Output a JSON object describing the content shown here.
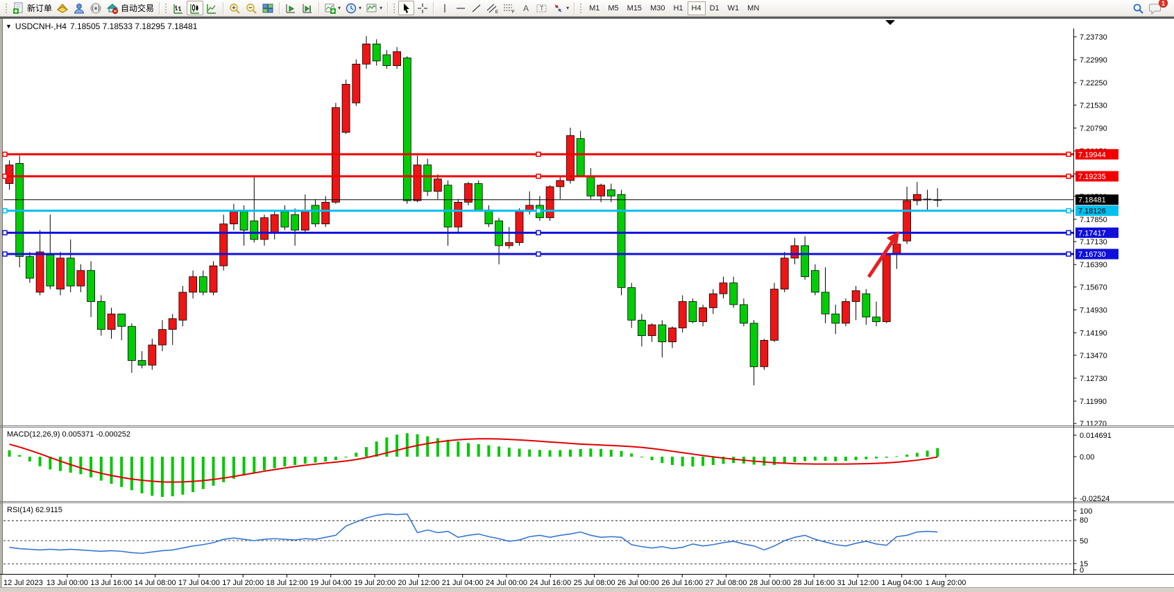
{
  "toolbar": {
    "new_order_label": "新订单",
    "auto_trading_label": "自动交易",
    "timeframes": [
      "M1",
      "M5",
      "M15",
      "M30",
      "H1",
      "H4",
      "D1",
      "W1",
      "MN"
    ],
    "active_timeframe": "H4",
    "notification_count": "1"
  },
  "chart": {
    "title_symbol": "USDCNH-,H4",
    "title_ohlc": "7.18505 7.18533 7.18295 7.18481",
    "collapse_arrow": "▼"
  },
  "chart_data": {
    "type": "candlestick",
    "symbol": "USDCNH-",
    "timeframe": "H4",
    "ohlc": {
      "open": "7.18505",
      "high": "7.18533",
      "low": "7.18295",
      "close": "7.18481"
    },
    "current_price": 7.18481,
    "price_ticks": [
      7.2373,
      7.2299,
      7.2225,
      7.2153,
      7.2079,
      7.2005,
      7.1931,
      7.1859,
      7.1785,
      7.1713,
      7.1639,
      7.1567,
      7.1493,
      7.1419,
      7.1347,
      7.1273,
      7.1199,
      7.1127
    ],
    "hlines": [
      {
        "price": 7.19944,
        "color": "red"
      },
      {
        "price": 7.19235,
        "color": "red"
      },
      {
        "price": 7.18126,
        "color": "cyan"
      },
      {
        "price": 7.17417,
        "color": "blue"
      },
      {
        "price": 7.1673,
        "color": "blue"
      }
    ],
    "candles": [
      [
        7.19,
        7.1975,
        7.188,
        7.196
      ],
      [
        7.1965,
        7.199,
        7.163,
        7.1665
      ],
      [
        7.1665,
        7.168,
        7.158,
        7.1595
      ],
      [
        7.155,
        7.175,
        7.154,
        7.168
      ],
      [
        7.167,
        7.18,
        7.156,
        7.157
      ],
      [
        7.156,
        7.168,
        7.154,
        7.166
      ],
      [
        7.166,
        7.172,
        7.155,
        7.157
      ],
      [
        7.157,
        7.164,
        7.155,
        7.162
      ],
      [
        7.162,
        7.165,
        7.147,
        7.152
      ],
      [
        7.152,
        7.154,
        7.141,
        7.143
      ],
      [
        7.143,
        7.15,
        7.14,
        7.148
      ],
      [
        7.148,
        7.148,
        7.1395,
        7.144
      ],
      [
        7.144,
        7.145,
        7.129,
        7.133
      ],
      [
        7.133,
        7.136,
        7.1305,
        7.1315
      ],
      [
        7.1315,
        7.14,
        7.13,
        7.138
      ],
      [
        7.138,
        7.146,
        7.136,
        7.143
      ],
      [
        7.143,
        7.148,
        7.138,
        7.1465
      ],
      [
        7.146,
        7.157,
        7.144,
        7.155
      ],
      [
        7.155,
        7.162,
        7.153,
        7.16
      ],
      [
        7.16,
        7.162,
        7.154,
        7.155
      ],
      [
        7.155,
        7.165,
        7.154,
        7.1635
      ],
      [
        7.1635,
        7.18,
        7.162,
        7.177
      ],
      [
        7.177,
        7.1835,
        7.175,
        7.181
      ],
      [
        7.181,
        7.183,
        7.17,
        7.175
      ],
      [
        7.178,
        7.1925,
        7.171,
        7.172
      ],
      [
        7.172,
        7.18,
        7.17,
        7.179
      ],
      [
        7.174,
        7.181,
        7.172,
        7.18
      ],
      [
        7.181,
        7.183,
        7.175,
        7.176
      ],
      [
        7.18,
        7.182,
        7.17,
        7.175
      ],
      [
        7.175,
        7.1865,
        7.174,
        7.181
      ],
      [
        7.183,
        7.185,
        7.176,
        7.177
      ],
      [
        7.177,
        7.186,
        7.176,
        7.184
      ],
      [
        7.184,
        7.216,
        7.1835,
        7.2145
      ],
      [
        7.2065,
        7.2235,
        7.206,
        7.222
      ],
      [
        7.216,
        7.23,
        7.215,
        7.2285
      ],
      [
        7.2285,
        7.2375,
        7.227,
        7.235
      ],
      [
        7.235,
        7.2365,
        7.228,
        7.2295
      ],
      [
        7.2315,
        7.233,
        7.227,
        7.228
      ],
      [
        7.228,
        7.234,
        7.227,
        7.2325
      ],
      [
        7.2305,
        7.231,
        7.1835,
        7.1845
      ],
      [
        7.1845,
        7.199,
        7.184,
        7.196
      ],
      [
        7.196,
        7.198,
        7.186,
        7.1875
      ],
      [
        7.1875,
        7.193,
        7.185,
        7.1915
      ],
      [
        7.1895,
        7.191,
        7.17,
        7.176
      ],
      [
        7.176,
        7.185,
        7.174,
        7.184
      ],
      [
        7.184,
        7.1905,
        7.183,
        7.19
      ],
      [
        7.19,
        7.191,
        7.181,
        7.1815
      ],
      [
        7.1815,
        7.183,
        7.176,
        7.177
      ],
      [
        7.178,
        7.179,
        7.164,
        7.17
      ],
      [
        7.17,
        7.176,
        7.169,
        7.171
      ],
      [
        7.171,
        7.182,
        7.17,
        7.181
      ],
      [
        7.181,
        7.1875,
        7.18,
        7.183
      ],
      [
        7.183,
        7.186,
        7.178,
        7.179
      ],
      [
        7.179,
        7.1895,
        7.178,
        7.189
      ],
      [
        7.189,
        7.1925,
        7.185,
        7.191
      ],
      [
        7.191,
        7.208,
        7.19,
        7.2055
      ],
      [
        7.2045,
        7.207,
        7.192,
        7.1925
      ],
      [
        7.1925,
        7.195,
        7.185,
        7.186
      ],
      [
        7.186,
        7.19,
        7.184,
        7.1895
      ],
      [
        7.188,
        7.19,
        7.184,
        7.186
      ],
      [
        7.1865,
        7.188,
        7.154,
        7.1565
      ],
      [
        7.1565,
        7.158,
        7.1435,
        7.146
      ],
      [
        7.146,
        7.148,
        7.1375,
        7.141
      ],
      [
        7.141,
        7.145,
        7.139,
        7.1445
      ],
      [
        7.1445,
        7.146,
        7.134,
        7.139
      ],
      [
        7.139,
        7.144,
        7.137,
        7.1435
      ],
      [
        7.1435,
        7.154,
        7.142,
        7.152
      ],
      [
        7.152,
        7.153,
        7.145,
        7.1455
      ],
      [
        7.1455,
        7.151,
        7.144,
        7.15
      ],
      [
        7.15,
        7.156,
        7.148,
        7.1545
      ],
      [
        7.1545,
        7.16,
        7.153,
        7.158
      ],
      [
        7.158,
        7.16,
        7.15,
        7.151
      ],
      [
        7.151,
        7.153,
        7.144,
        7.145
      ],
      [
        7.145,
        7.146,
        7.125,
        7.131
      ],
      [
        7.131,
        7.14,
        7.13,
        7.1395
      ],
      [
        7.1395,
        7.158,
        7.139,
        7.156
      ],
      [
        7.156,
        7.168,
        7.155,
        7.166
      ],
      [
        7.166,
        7.1725,
        7.164,
        7.17
      ],
      [
        7.17,
        7.173,
        7.159,
        7.16
      ],
      [
        7.162,
        7.164,
        7.154,
        7.155
      ],
      [
        7.155,
        7.163,
        7.145,
        7.148
      ],
      [
        7.148,
        7.151,
        7.1415,
        7.145
      ],
      [
        7.145,
        7.153,
        7.144,
        7.152
      ],
      [
        7.152,
        7.157,
        7.146,
        7.1555
      ],
      [
        7.1545,
        7.156,
        7.1445,
        7.147
      ],
      [
        7.147,
        7.152,
        7.144,
        7.1455
      ],
      [
        7.1455,
        7.169,
        7.145,
        7.1675
      ],
      [
        7.1675,
        7.173,
        7.1625,
        7.1705
      ],
      [
        7.1715,
        7.189,
        7.1705,
        7.1845
      ],
      [
        7.1845,
        7.1905,
        7.183,
        7.1865
      ],
      [
        7.185,
        7.188,
        7.181,
        7.1848
      ],
      [
        7.1848,
        7.1885,
        7.1825,
        7.18481
      ]
    ],
    "time_labels": [
      "12 Jul 2023",
      "13 Jul 00:00",
      "13 Jul 16:00",
      "14 Jul 08:00",
      "17 Jul 04:00",
      "17 Jul 20:00",
      "18 Jul 12:00",
      "19 Jul 04:00",
      "19 Jul 20:00",
      "20 Jul 12:00",
      "21 Jul 04:00",
      "24 Jul 00:00",
      "24 Jul 16:00",
      "25 Jul 08:00",
      "26 Jul 00:00",
      "26 Jul 16:00",
      "27 Jul 08:00",
      "28 Jul 00:00",
      "28 Jul 16:00",
      "31 Jul 12:00",
      "1 Aug 04:00",
      "1 Aug 20:00"
    ],
    "indicators": {
      "macd": {
        "label": "MACD(12,26,9) 0.005371 -0.000252",
        "params": "12,26,9",
        "value": 0.005371,
        "signal_value": -0.000252,
        "axis_labels": [
          "0.014691",
          "0.00",
          "-0.02524"
        ],
        "histogram": [
          0.004,
          0.001,
          -0.003,
          -0.006,
          -0.008,
          -0.009,
          -0.01,
          -0.011,
          -0.013,
          -0.015,
          -0.017,
          -0.019,
          -0.021,
          -0.023,
          -0.0245,
          -0.0252,
          -0.0248,
          -0.0238,
          -0.0222,
          -0.0203,
          -0.0182,
          -0.016,
          -0.0138,
          -0.0118,
          -0.01,
          -0.0085,
          -0.0072,
          -0.0061,
          -0.0052,
          -0.0044,
          -0.0037,
          -0.003,
          -0.0022,
          -0.0005,
          0.0025,
          0.006,
          0.0095,
          0.012,
          0.0138,
          0.0147,
          0.014,
          0.0128,
          0.0116,
          0.0106,
          0.0095,
          0.0085,
          0.0078,
          0.0071,
          0.0064,
          0.0057,
          0.005,
          0.0045,
          0.0042,
          0.004,
          0.0041,
          0.0044,
          0.0048,
          0.0051,
          0.0048,
          0.0043,
          0.0036,
          0.002,
          0.0,
          -0.0022,
          -0.004,
          -0.0052,
          -0.006,
          -0.0062,
          -0.0058,
          -0.0052,
          -0.0045,
          -0.004,
          -0.0043,
          -0.005,
          -0.0056,
          -0.0052,
          -0.0044,
          -0.0035,
          -0.0028,
          -0.0024,
          -0.0026,
          -0.0029,
          -0.0027,
          -0.0022,
          -0.0016,
          -0.0011,
          -0.0007,
          0.0003,
          0.0013,
          0.0024,
          0.0038,
          0.00537
        ],
        "signal": [
          0.0078,
          0.006,
          0.004,
          0.0018,
          -0.0005,
          -0.0028,
          -0.005,
          -0.007,
          -0.0088,
          -0.0104,
          -0.0118,
          -0.013,
          -0.014,
          -0.0148,
          -0.0154,
          -0.0158,
          -0.0159,
          -0.0158,
          -0.0155,
          -0.015,
          -0.0143,
          -0.0134,
          -0.0124,
          -0.0113,
          -0.0102,
          -0.0091,
          -0.0081,
          -0.0071,
          -0.0062,
          -0.0054,
          -0.0047,
          -0.004,
          -0.0034,
          -0.0027,
          -0.0018,
          -0.0006,
          0.0008,
          0.0024,
          0.004,
          0.0056,
          0.007,
          0.0082,
          0.0092,
          0.01,
          0.0106,
          0.011,
          0.0112,
          0.0112,
          0.0111,
          0.0108,
          0.0105,
          0.0101,
          0.0097,
          0.0092,
          0.0088,
          0.0083,
          0.0079,
          0.0076,
          0.0073,
          0.007,
          0.0067,
          0.0063,
          0.0058,
          0.0051,
          0.0043,
          0.0034,
          0.0025,
          0.0016,
          0.0007,
          -0.0001,
          -0.0009,
          -0.0016,
          -0.0022,
          -0.0028,
          -0.0033,
          -0.0038,
          -0.0041,
          -0.0044,
          -0.0045,
          -0.0046,
          -0.0046,
          -0.0046,
          -0.0046,
          -0.0045,
          -0.0044,
          -0.0042,
          -0.0039,
          -0.0035,
          -0.0029,
          -0.0022,
          -0.0013,
          -0.00025
        ]
      },
      "rsi": {
        "label": "RSI(14) 62.9115",
        "period": 14,
        "value": 62.9115,
        "axis_labels": [
          "100",
          "80",
          "50",
          "15",
          "0"
        ],
        "levels": [
          80,
          50,
          15
        ],
        "values": [
          40,
          38,
          37,
          36,
          37,
          36,
          37,
          36,
          35,
          34,
          35,
          34,
          32,
          31,
          33,
          35,
          36,
          39,
          42,
          44,
          47,
          52,
          54,
          52,
          50,
          52,
          53,
          52,
          51,
          53,
          52,
          55,
          58,
          72,
          78,
          84,
          88,
          90,
          89,
          90,
          62,
          66,
          62,
          64,
          55,
          58,
          60,
          56,
          53,
          49,
          51,
          56,
          58,
          55,
          58,
          60,
          63,
          58,
          55,
          56,
          55,
          44,
          41,
          39,
          41,
          38,
          40,
          45,
          42,
          44,
          47,
          49,
          45,
          42,
          36,
          42,
          50,
          55,
          58,
          52,
          48,
          44,
          42,
          46,
          49,
          45,
          43,
          56,
          58,
          63,
          64,
          63
        ]
      }
    },
    "annotations": [
      {
        "type": "arrow",
        "color": "#e62020",
        "direction": "up-right"
      }
    ]
  },
  "colors": {
    "bull": "#ee1515",
    "bear": "#00cd06",
    "wick": "#000000",
    "macd_hist": "#00c800",
    "macd_signal": "#e00000",
    "rsi_line": "#3576d2",
    "line_red": "#f00000",
    "line_cyan": "#00bfef",
    "line_blue": "#1010d8",
    "price_line_black": "#000000"
  }
}
